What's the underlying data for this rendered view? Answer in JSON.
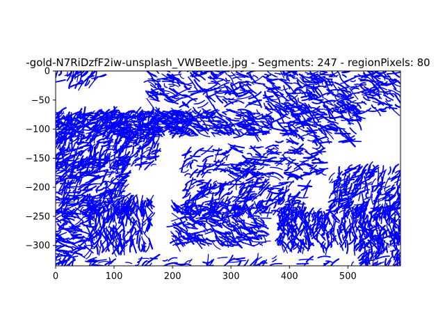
{
  "chart_data": {
    "type": "line",
    "title": "-gold-N7RiDzfF2iw-unsplash_VWBeetle.jpg - Segments: 247 - regionPixels: 80",
    "xlabel": "",
    "ylabel": "",
    "xlim": [
      0,
      590
    ],
    "ylim": [
      -335,
      0
    ],
    "x_ticks": [
      0,
      100,
      200,
      300,
      400,
      500
    ],
    "y_ticks": [
      0,
      -50,
      -100,
      -150,
      -200,
      -250,
      -300
    ],
    "grid": false,
    "series_color": "#0000ff",
    "segment_count": 247,
    "stroke_regions": [
      {
        "x": [
          0,
          230
        ],
        "y": [
          -110,
          -70
        ],
        "density": 1.0
      },
      {
        "x": [
          0,
          175
        ],
        "y": [
          -165,
          -70
        ],
        "density": 0.95
      },
      {
        "x": [
          175,
          370
        ],
        "y": [
          -110,
          -68
        ],
        "density": 1.0
      },
      {
        "x": [
          0,
          120
        ],
        "y": [
          -250,
          -150
        ],
        "density": 0.9
      },
      {
        "x": [
          0,
          60
        ],
        "y": [
          -320,
          -240
        ],
        "density": 0.85
      },
      {
        "x": [
          55,
          165
        ],
        "y": [
          -310,
          -220
        ],
        "density": 0.9
      },
      {
        "x": [
          200,
          360
        ],
        "y": [
          -300,
          -230
        ],
        "density": 0.85
      },
      {
        "x": [
          220,
          430
        ],
        "y": [
          -250,
          -190
        ],
        "density": 0.75
      },
      {
        "x": [
          380,
          590
        ],
        "y": [
          -305,
          -240
        ],
        "density": 0.95
      },
      {
        "x": [
          470,
          590
        ],
        "y": [
          -250,
          -165
        ],
        "density": 0.95
      },
      {
        "x": [
          360,
          590
        ],
        "y": [
          -70,
          0
        ],
        "density": 0.75
      },
      {
        "x": [
          380,
          520
        ],
        "y": [
          -125,
          -60
        ],
        "density": 0.7
      },
      {
        "x": [
          160,
          350
        ],
        "y": [
          -60,
          0
        ],
        "density": 0.6
      },
      {
        "x": [
          0,
          80
        ],
        "y": [
          -25,
          0
        ],
        "density": 0.6
      },
      {
        "x": [
          300,
          460
        ],
        "y": [
          -185,
          -130
        ],
        "density": 0.65
      },
      {
        "x": [
          220,
          300
        ],
        "y": [
          -180,
          -135
        ],
        "density": 0.5
      },
      {
        "x": [
          0,
          590
        ],
        "y": [
          -335,
          -320
        ],
        "density": 0.35
      },
      {
        "x": [
          520,
          590
        ],
        "y": [
          -335,
          -270
        ],
        "density": 0.6
      }
    ]
  }
}
